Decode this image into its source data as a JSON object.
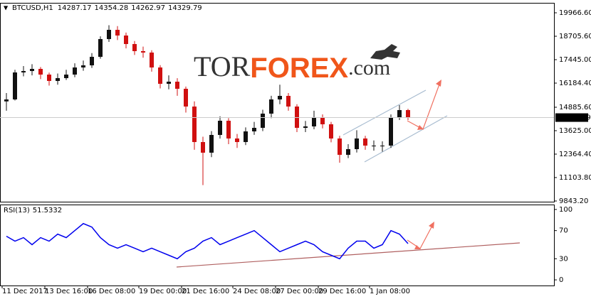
{
  "header": {
    "symbol": "BTCUSD,H1",
    "values": [
      14287.17,
      14354.28,
      14262.97,
      14329.79
    ]
  },
  "watermark": {
    "part1": "TOR",
    "part2": "FOREX",
    "part3": ".com"
  },
  "chart_data": [
    {
      "type": "candlestick",
      "current_price": 14329.79,
      "up_color": "#111111",
      "down_color": "#d01010",
      "categories": [
        "11 Dec 2017",
        null,
        null,
        null,
        null,
        "13 Dec 16:00",
        null,
        null,
        null,
        null,
        "16 Dec 08:00",
        null,
        null,
        null,
        null,
        null,
        "19 Dec 00:00",
        null,
        null,
        null,
        null,
        "21 Dec 16:00",
        null,
        null,
        null,
        null,
        null,
        "24 Dec 08:00",
        null,
        null,
        null,
        null,
        "27 Dec 00:00",
        null,
        null,
        null,
        null,
        "29 Dec 16:00",
        null,
        null,
        null,
        null,
        null,
        "1 Jan 08:00",
        null,
        null,
        null,
        null
      ],
      "open": [
        15200,
        15306,
        16758,
        16834,
        16949,
        16643,
        16300,
        16452,
        16643,
        17025,
        17140,
        17598,
        18553,
        19050,
        18744,
        18286,
        17904,
        17828,
        17025,
        16147,
        16261,
        15879,
        14924,
        13014,
        12441,
        13396,
        14160,
        13205,
        13014,
        13587,
        13778,
        14542,
        15306,
        15497,
        14924,
        13778,
        13855,
        14351,
        13969,
        13205,
        12326,
        12632,
        13205,
        12823,
        12823,
        12823,
        14351,
        14733
      ],
      "high": [
        15650,
        16900,
        17100,
        17200,
        17050,
        16750,
        16700,
        16900,
        17250,
        17400,
        17800,
        18700,
        19300,
        19250,
        18900,
        18450,
        18150,
        17950,
        17150,
        16600,
        16450,
        16000,
        15200,
        13300,
        13600,
        14400,
        14300,
        13450,
        13800,
        14100,
        14750,
        15500,
        16100,
        15650,
        15050,
        14150,
        14700,
        14500,
        14100,
        13350,
        12900,
        13650,
        13350,
        13100,
        13050,
        14500,
        15000,
        14800
      ],
      "low": [
        14700,
        15250,
        16550,
        16600,
        16400,
        16050,
        16100,
        16350,
        16500,
        16850,
        17000,
        17500,
        18400,
        18500,
        18050,
        17700,
        17550,
        16800,
        15900,
        15850,
        15500,
        14600,
        12600,
        10700,
        12200,
        13200,
        12900,
        12700,
        12850,
        13400,
        13600,
        14300,
        15050,
        14700,
        13550,
        13550,
        13700,
        13750,
        13000,
        11900,
        12150,
        12450,
        12600,
        12550,
        12500,
        12700,
        14200,
        14200
      ],
      "close": [
        15306,
        16758,
        16834,
        16949,
        16643,
        16300,
        16452,
        16643,
        17025,
        17140,
        17598,
        18553,
        19050,
        18744,
        18286,
        17904,
        17828,
        17025,
        16147,
        16261,
        15879,
        14924,
        13014,
        12441,
        13396,
        14160,
        13205,
        13014,
        13587,
        13778,
        14542,
        15306,
        15497,
        14924,
        13778,
        13855,
        14351,
        13969,
        13205,
        12326,
        12632,
        13205,
        12823,
        12823,
        12823,
        14351,
        14733,
        14329.79
      ],
      "ylim": [
        9805,
        20502
      ],
      "yticks": [
        {
          "value": 9843.2,
          "label": "9843.20"
        },
        {
          "value": 11103.8,
          "label": "11103.80"
        },
        {
          "value": 12364.4,
          "label": "12364.40"
        },
        {
          "value": 13625,
          "label": "13625.00"
        },
        {
          "value": 14885.6,
          "label": "14885.60"
        },
        {
          "value": 16184.4,
          "label": "16184.40"
        },
        {
          "value": 17445,
          "label": "17445.00"
        },
        {
          "value": 18705.6,
          "label": "18705.60"
        },
        {
          "value": 19966.6,
          "label": "19966.60"
        }
      ]
    },
    {
      "type": "line",
      "indicator": "RSI(13)",
      "current": 51.5332,
      "color": "#0000ee",
      "values": [
        62,
        55,
        60,
        50,
        60,
        55,
        65,
        60,
        70,
        80,
        75,
        60,
        50,
        45,
        50,
        45,
        40,
        45,
        40,
        35,
        30,
        40,
        45,
        55,
        60,
        50,
        55,
        60,
        65,
        70,
        60,
        50,
        40,
        45,
        50,
        55,
        50,
        40,
        35,
        30,
        45,
        55,
        55,
        45,
        50,
        70,
        65,
        51.5332
      ],
      "ylim": [
        -8,
        107
      ],
      "yticks": [
        0,
        30,
        70,
        100
      ]
    }
  ]
}
